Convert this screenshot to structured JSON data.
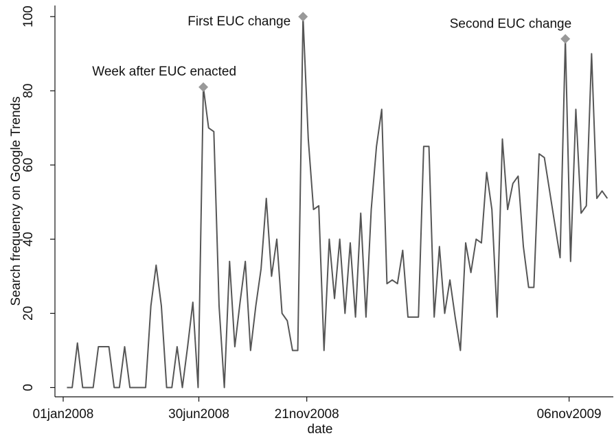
{
  "chart_data": {
    "type": "line",
    "x_label": "date",
    "y_label": "Search frequency on Google Trends",
    "x": [
      "2008-01-06",
      "2008-01-13",
      "2008-01-20",
      "2008-01-27",
      "2008-02-03",
      "2008-02-10",
      "2008-02-17",
      "2008-02-24",
      "2008-03-02",
      "2008-03-09",
      "2008-03-16",
      "2008-03-23",
      "2008-03-30",
      "2008-04-06",
      "2008-04-13",
      "2008-04-20",
      "2008-04-27",
      "2008-05-04",
      "2008-05-11",
      "2008-05-18",
      "2008-05-25",
      "2008-06-01",
      "2008-06-08",
      "2008-06-15",
      "2008-06-22",
      "2008-06-29",
      "2008-07-06",
      "2008-07-13",
      "2008-07-20",
      "2008-07-27",
      "2008-08-03",
      "2008-08-10",
      "2008-08-17",
      "2008-08-24",
      "2008-08-31",
      "2008-09-07",
      "2008-09-14",
      "2008-09-21",
      "2008-09-28",
      "2008-10-05",
      "2008-10-12",
      "2008-10-19",
      "2008-10-26",
      "2008-11-02",
      "2008-11-09",
      "2008-11-16",
      "2008-11-23",
      "2008-11-30",
      "2008-12-07",
      "2008-12-14",
      "2008-12-21",
      "2008-12-28",
      "2009-01-04",
      "2009-01-11",
      "2009-01-18",
      "2009-01-25",
      "2009-02-01",
      "2009-02-08",
      "2009-02-15",
      "2009-02-22",
      "2009-03-01",
      "2009-03-08",
      "2009-03-15",
      "2009-03-22",
      "2009-03-29",
      "2009-04-05",
      "2009-04-12",
      "2009-04-19",
      "2009-04-26",
      "2009-05-03",
      "2009-05-10",
      "2009-05-17",
      "2009-05-24",
      "2009-05-31",
      "2009-06-07",
      "2009-06-14",
      "2009-06-21",
      "2009-06-28",
      "2009-07-05",
      "2009-07-12",
      "2009-07-19",
      "2009-07-26",
      "2009-08-02",
      "2009-08-09",
      "2009-08-16",
      "2009-08-23",
      "2009-08-30",
      "2009-09-06",
      "2009-09-13",
      "2009-09-20",
      "2009-09-27",
      "2009-10-04",
      "2009-10-11",
      "2009-10-18",
      "2009-10-25",
      "2009-11-01",
      "2009-11-08",
      "2009-11-15",
      "2009-11-22",
      "2009-11-29",
      "2009-12-06",
      "2009-12-13",
      "2009-12-20",
      "2009-12-27"
    ],
    "series": [
      {
        "name": "Search frequency",
        "color": "#555555",
        "values": [
          0,
          0,
          12,
          0,
          0,
          0,
          11,
          11,
          11,
          0,
          0,
          11,
          0,
          0,
          0,
          0,
          22,
          33,
          22,
          0,
          0,
          11,
          0,
          11,
          23,
          0,
          81,
          70,
          69,
          22,
          0,
          34,
          11,
          23,
          34,
          10,
          22,
          32,
          51,
          30,
          40,
          20,
          18,
          10,
          10,
          100,
          67,
          48,
          49,
          10,
          40,
          24,
          40,
          20,
          39,
          19,
          47,
          19,
          48,
          65,
          75,
          28,
          29,
          28,
          37,
          19,
          19,
          19,
          65,
          65,
          19,
          38,
          20,
          29,
          19,
          10,
          39,
          31,
          40,
          39,
          58,
          48,
          19,
          67,
          48,
          55,
          57,
          38,
          27,
          27,
          63,
          62,
          53,
          44,
          35,
          94,
          34,
          75,
          47,
          49,
          90,
          51,
          53,
          51
        ]
      }
    ],
    "xlim": [
      "2007-12-21",
      "2010-01-04"
    ],
    "xticks": [
      {
        "value": "2008-01-01",
        "label": "01jan2008"
      },
      {
        "value": "2008-06-30",
        "label": "30jun2008"
      },
      {
        "value": "2008-11-21",
        "label": "21nov2008"
      },
      {
        "value": "2009-11-06",
        "label": "06nov2009"
      }
    ],
    "ylim": [
      -2.5,
      103
    ],
    "yticks": [
      0,
      20,
      40,
      60,
      80,
      100
    ],
    "marker_color": "#999999",
    "annotations": [
      {
        "text": "Week after EUC enacted",
        "x": "2008-07-06",
        "y": 81
      },
      {
        "text": "First EUC change",
        "x": "2008-11-16",
        "y": 100
      },
      {
        "text": "Second EUC change",
        "x": "2009-11-01",
        "y": 94
      }
    ]
  }
}
